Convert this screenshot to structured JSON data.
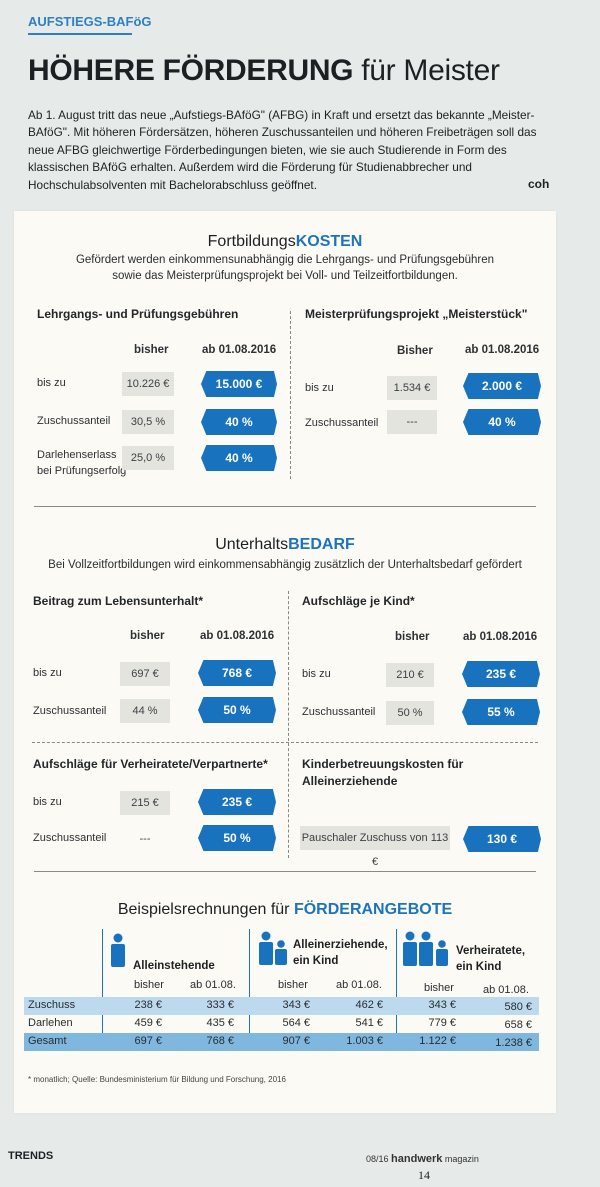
{
  "header": {
    "tag": "AUFSTIEGS-BAFöG",
    "title_bold": "HÖHERE FÖRDERUNG",
    "title_rest": " für Meister",
    "intro": "Ab 1. August tritt das neue „Aufstiegs-BAföG\" (AFBG) in Kraft und ersetzt das bekannte „Meister-BAföG\". Mit höheren Fördersätzen, höheren Zuschussanteilen und höheren Freibeträgen soll das neue AFBG gleichwertige Förderbedingungen bieten, wie sie auch Studierende in Form des klassischen BAföG erhalten. Außerdem wird die Förderung für Studienabbrecher und Hochschulabsolventen mit Bachelorabschluss geöffnet.",
    "intro_end": "coh"
  },
  "kosten": {
    "title_plain": "Fortbildungs",
    "title_accent": "KOSTEN",
    "desc_1": "Gefördert werden einkommensunabhängig die Lehrgangs- und Prüfungsgebühren",
    "desc_2": "sowie das Meisterprüfungsprojekt bei Voll- und Teilzeitfortbildungen.",
    "left": {
      "heading": "Lehrgangs- und Prüfungsgebühren",
      "col_old": "bisher",
      "col_new": "ab 01.08.2016",
      "rows": [
        {
          "label": "bis zu",
          "old": "10.226 €",
          "new": "15.000 €"
        },
        {
          "label": "Zuschussanteil",
          "old": "30,5 %",
          "new": "40 %"
        },
        {
          "label": "Darlehenserlass",
          "label2": "bei Prüfungserfolg",
          "old": "25,0 %",
          "new": "40 %"
        }
      ]
    },
    "right": {
      "heading": "Meisterprüfungsprojekt „Meisterstück\"",
      "col_old": "Bisher",
      "col_new": "ab 01.08.2016",
      "rows": [
        {
          "label": "bis zu",
          "old": "1.534 €",
          "new": "2.000 €"
        },
        {
          "label": "Zuschussanteil",
          "old": "---",
          "new": "40 %"
        }
      ]
    }
  },
  "bedarf": {
    "title_plain": "Unterhalts",
    "title_accent": "BEDARF",
    "desc": "Bei Vollzeitfortbildungen wird einkommensabhängig zusätzlich der Unterhaltsbedarf gefördert",
    "lebensunterhalt": {
      "heading": "Beitrag zum Lebensunterhalt*",
      "col_old": "bisher",
      "col_new": "ab 01.08.2016",
      "rows": [
        {
          "label": "bis zu",
          "old": "697 €",
          "new": "768 €"
        },
        {
          "label": "Zuschussanteil",
          "old": "44 %",
          "new": "50 %"
        }
      ]
    },
    "kind": {
      "heading": "Aufschläge je Kind*",
      "col_old": "bisher",
      "col_new": "ab 01.08.2016",
      "rows": [
        {
          "label": "bis zu",
          "old": "210 €",
          "new": "235 €"
        },
        {
          "label": "Zuschussanteil",
          "old": "50 %",
          "new": "55 %"
        }
      ]
    },
    "verheiratete": {
      "heading": "Aufschläge für Verheiratete/Verpartnerte*",
      "rows": [
        {
          "label": "bis zu",
          "old": "215 €",
          "new": "235 €"
        },
        {
          "label": "Zuschussanteil",
          "old": "---",
          "new": "50 %"
        }
      ]
    },
    "kinderbetreuung": {
      "heading_1": "Kinderbetreuungskosten für",
      "heading_2": "Alleinerziehende",
      "old": "Pauschaler Zuschuss von 113 €",
      "new": "130 €"
    }
  },
  "beispiele": {
    "title_plain": "Beispielsrechnungen für ",
    "title_accent": "FÖRDERANGEBOTE",
    "groups": [
      {
        "name_1": "Alleinstehende",
        "name_2": "",
        "icon": "single-person-icon"
      },
      {
        "name_1": "Alleinerziehende,",
        "name_2": "ein Kind",
        "icon": "parent-child-icon"
      },
      {
        "name_1": "Verheiratete,",
        "name_2": "ein Kind",
        "icon": "family-icon"
      }
    ],
    "col_old": "bisher",
    "col_new": "ab 01.08.",
    "rows": [
      {
        "label": "Zuschuss",
        "values": [
          "238 €",
          "333 €",
          "343 €",
          "462 €",
          "343 €",
          "580 €"
        ]
      },
      {
        "label": "Darlehen",
        "values": [
          "459 €",
          "435 €",
          "564 €",
          "541 €",
          "779 €",
          "658 €"
        ]
      },
      {
        "label": "Gesamt",
        "values": [
          "697 €",
          "768 €",
          "907 €",
          "1.003 €",
          "1.122 €",
          "1.238 €"
        ]
      }
    ],
    "footnote": "* monatlich; Quelle: Bundesministerium für Bildung und Forschung, 2016"
  },
  "footer": {
    "section": "TRENDS",
    "issue": "08/16",
    "mag_bold": "handwerk",
    "mag_rest": " magazin",
    "page": "14"
  },
  "colors": {
    "accent": "#1872bd",
    "title_accent": "#1d73bd",
    "old_bg": "#e4e4df",
    "band_light": "#bcd9ee",
    "band_dark": "#7fb7df"
  }
}
